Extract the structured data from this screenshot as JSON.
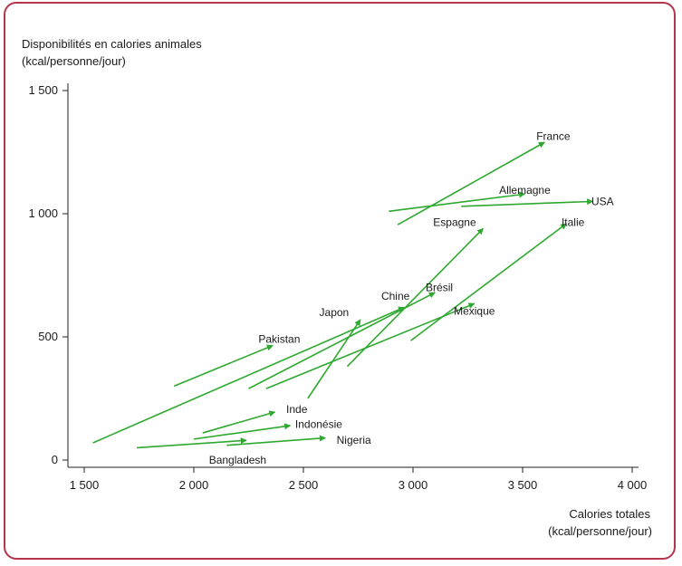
{
  "chart_data": {
    "type": "arrow",
    "ylabel_line1": "Disponibilités en calories animales",
    "ylabel_line2": "(kcal/personne/jour)",
    "xlabel_line1": "Calories totales",
    "xlabel_line2": "(kcal/personne/jour)",
    "xlim": [
      1500,
      4000
    ],
    "ylim": [
      0,
      1500
    ],
    "x_ticks": [
      {
        "value": 1500,
        "label": "1 500"
      },
      {
        "value": 2000,
        "label": "2 000"
      },
      {
        "value": 2500,
        "label": "2 500"
      },
      {
        "value": 3000,
        "label": "3 000"
      },
      {
        "value": 3500,
        "label": "3 500"
      },
      {
        "value": 4000,
        "label": "4 000"
      }
    ],
    "y_ticks": [
      {
        "value": 0,
        "label": "0"
      },
      {
        "value": 500,
        "label": "500"
      },
      {
        "value": 1000,
        "label": "1 000"
      },
      {
        "value": 1500,
        "label": "1 500"
      }
    ],
    "arrow_color": "#2ea82e",
    "series": [
      {
        "name": "France",
        "x0": 2930,
        "y0": 955,
        "x1": 3600,
        "y1": 1290
      },
      {
        "name": "Allemagne",
        "x0": 2890,
        "y0": 1010,
        "x1": 3510,
        "y1": 1080
      },
      {
        "name": "USA",
        "x0": 3220,
        "y0": 1030,
        "x1": 3820,
        "y1": 1050
      },
      {
        "name": "Espagne",
        "x0": 2700,
        "y0": 380,
        "x1": 3320,
        "y1": 940
      },
      {
        "name": "Italie",
        "x0": 2990,
        "y0": 485,
        "x1": 3700,
        "y1": 960
      },
      {
        "name": "Mexique",
        "x0": 2330,
        "y0": 290,
        "x1": 3280,
        "y1": 635
      },
      {
        "name": "Brésil",
        "x0": 2250,
        "y0": 290,
        "x1": 3100,
        "y1": 680
      },
      {
        "name": "Chine",
        "x0": 1540,
        "y0": 70,
        "x1": 2960,
        "y1": 620
      },
      {
        "name": "Japon",
        "x0": 2520,
        "y0": 250,
        "x1": 2760,
        "y1": 570
      },
      {
        "name": "Pakistan",
        "x0": 1910,
        "y0": 300,
        "x1": 2360,
        "y1": 465
      },
      {
        "name": "Inde",
        "x0": 2040,
        "y0": 110,
        "x1": 2370,
        "y1": 195
      },
      {
        "name": "Indonésie",
        "x0": 2000,
        "y0": 85,
        "x1": 2440,
        "y1": 140
      },
      {
        "name": "Nigeria",
        "x0": 2150,
        "y0": 60,
        "x1": 2600,
        "y1": 90
      },
      {
        "name": "Bangladesh",
        "x0": 1740,
        "y0": 50,
        "x1": 2240,
        "y1": 80
      }
    ],
    "labels": [
      {
        "series": "France",
        "text": "France",
        "x": 3640,
        "y": 1315
      },
      {
        "series": "Allemagne",
        "text": "Allemagne",
        "x": 3510,
        "y": 1095
      },
      {
        "series": "USA",
        "text": "USA",
        "x": 3865,
        "y": 1050
      },
      {
        "series": "Espagne",
        "text": "Espagne",
        "x": 3190,
        "y": 965
      },
      {
        "series": "Italie",
        "text": "Italie",
        "x": 3730,
        "y": 965
      },
      {
        "series": "Mexique",
        "text": "Mexique",
        "x": 3280,
        "y": 605
      },
      {
        "series": "Brésil",
        "text": "Brésil",
        "x": 3120,
        "y": 700
      },
      {
        "series": "Chine",
        "text": "Chine",
        "x": 2920,
        "y": 665
      },
      {
        "series": "Japon",
        "text": "Japon",
        "x": 2640,
        "y": 600
      },
      {
        "series": "Pakistan",
        "text": "Pakistan",
        "x": 2390,
        "y": 490
      },
      {
        "series": "Inde",
        "text": "Inde",
        "x": 2470,
        "y": 205
      },
      {
        "series": "Indonésie",
        "text": "Indonésie",
        "x": 2570,
        "y": 145
      },
      {
        "series": "Nigeria",
        "text": "Nigeria",
        "x": 2730,
        "y": 80
      },
      {
        "series": "Bangladesh",
        "text": "Bangladesh",
        "x": 2200,
        "y": 0
      }
    ]
  }
}
